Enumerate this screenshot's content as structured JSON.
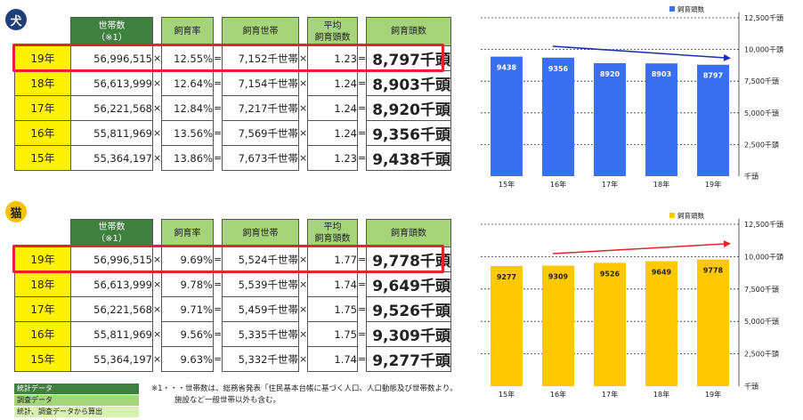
{
  "headers": {
    "households": "世帯数",
    "households_note": "（※1）",
    "rate": "飼育率",
    "owning_households": "飼育世帯",
    "avg_line1": "平均",
    "avg_line2": "飼育頭数",
    "count": "飼育頭数"
  },
  "ops": {
    "mul": "×",
    "eq": "="
  },
  "dog": {
    "badge": "犬",
    "rows": [
      {
        "year": "19年",
        "households": "56,996,515",
        "rate": "12.55%",
        "owning": "7,152千世帯",
        "avg": "1.23",
        "count": "8,797千頭"
      },
      {
        "year": "18年",
        "households": "56,613,999",
        "rate": "12.64%",
        "owning": "7,154千世帯",
        "avg": "1.24",
        "count": "8,903千頭"
      },
      {
        "year": "17年",
        "households": "56,221,568",
        "rate": "12.84%",
        "owning": "7,217千世帯",
        "avg": "1.24",
        "count": "8,920千頭"
      },
      {
        "year": "16年",
        "households": "55,811,969",
        "rate": "13.56%",
        "owning": "7,569千世帯",
        "avg": "1.24",
        "count": "9,356千頭"
      },
      {
        "year": "15年",
        "households": "55,364,197",
        "rate": "13.86%",
        "owning": "7,673千世帯",
        "avg": "1.23",
        "count": "9,438千頭"
      }
    ]
  },
  "cat": {
    "badge": "猫",
    "rows": [
      {
        "year": "19年",
        "households": "56,996,515",
        "rate": "9.69%",
        "owning": "5,524千世帯",
        "avg": "1.77",
        "count": "9,778千頭"
      },
      {
        "year": "18年",
        "households": "56,613,999",
        "rate": "9.78%",
        "owning": "5,539千世帯",
        "avg": "1.74",
        "count": "9,649千頭"
      },
      {
        "year": "17年",
        "households": "56,221,568",
        "rate": "9.71%",
        "owning": "5,459千世帯",
        "avg": "1.75",
        "count": "9,526千頭"
      },
      {
        "year": "16年",
        "households": "55,811,969",
        "rate": "9.56%",
        "owning": "5,335千世帯",
        "avg": "1.75",
        "count": "9,309千頭"
      },
      {
        "year": "15年",
        "households": "55,364,197",
        "rate": "9.63%",
        "owning": "5,332千世帯",
        "avg": "1.74",
        "count": "9,277千頭"
      }
    ]
  },
  "legend": {
    "stats": "統計データ",
    "survey": "調査データ",
    "calculated": "統計、調査データから算出",
    "colors": {
      "stats": "#3f7f3f",
      "survey": "#a6d47a",
      "calculated": "#d8f0b0"
    }
  },
  "footnote": {
    "line1": "※1・・・世帯数は、総務省発表「住民基本台帳に基づく人口、人口動態及び世帯数より。",
    "line2": "施設など一般世帯以外も含む。"
  },
  "chart_data": [
    {
      "type": "bar",
      "categories": [
        "15年",
        "16年",
        "17年",
        "18年",
        "19年"
      ],
      "series": [
        {
          "name": "飼育頭数",
          "values": [
            9438,
            9356,
            8920,
            8903,
            8797
          ]
        }
      ],
      "ylim": [
        0,
        12500
      ],
      "yticks": [
        "千頭",
        "2,500千頭",
        "5,000千頭",
        "7,500千頭",
        "10,000千頭",
        "12,500千頭"
      ],
      "grid": true,
      "legend_position": "top-right",
      "bar_color": "#3b6ff2",
      "trend_arrow": {
        "direction": "down",
        "color": "#1a2fb5"
      }
    },
    {
      "type": "bar",
      "categories": [
        "15年",
        "16年",
        "17年",
        "18年",
        "19年"
      ],
      "series": [
        {
          "name": "飼育頭数",
          "values": [
            9277,
            9309,
            9526,
            9649,
            9778
          ]
        }
      ],
      "ylim": [
        0,
        12500
      ],
      "yticks": [
        "千頭",
        "2,500千頭",
        "5,000千頭",
        "7,500千頭",
        "10,000千頭",
        "12,500千頭"
      ],
      "grid": true,
      "legend_position": "top-right",
      "bar_color": "#ffc800",
      "trend_arrow": {
        "direction": "up",
        "color": "#e3242b"
      }
    }
  ]
}
